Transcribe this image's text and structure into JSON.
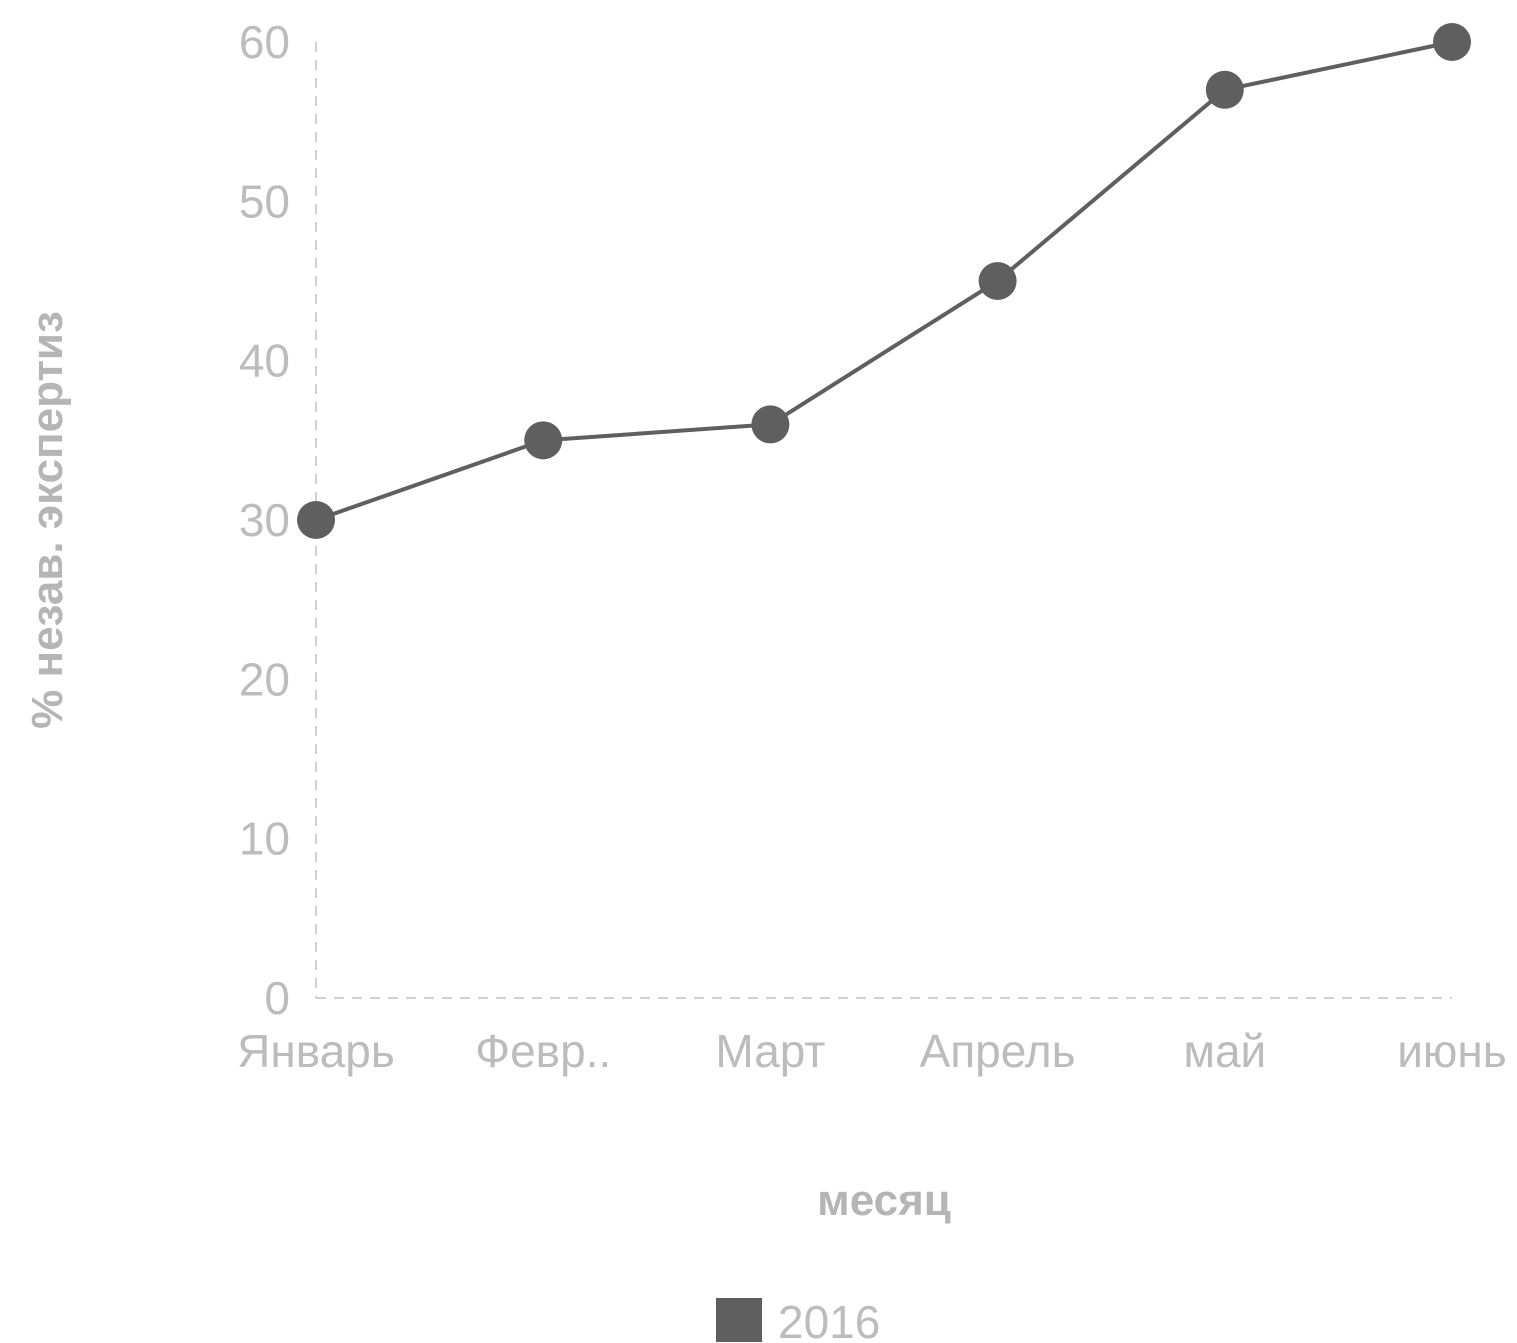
{
  "chart_data": {
    "type": "line",
    "categories": [
      "Январь",
      "Февр..",
      "Март",
      "Апрель",
      "май",
      "июнь"
    ],
    "series": [
      {
        "name": "2016",
        "values": [
          30,
          35,
          36,
          45,
          57,
          60
        ]
      }
    ],
    "xlabel": "месяц",
    "ylabel": "% незав. экспертиз",
    "ylim": [
      0,
      60
    ],
    "yticks": [
      "0",
      "10",
      "20",
      "30",
      "40",
      "50",
      "60"
    ],
    "grid": false,
    "legend_position": "bottom",
    "colors": {
      "series": "#5f5f5f",
      "axis": "#d0d0d0",
      "text": "#bcbcbc"
    }
  }
}
